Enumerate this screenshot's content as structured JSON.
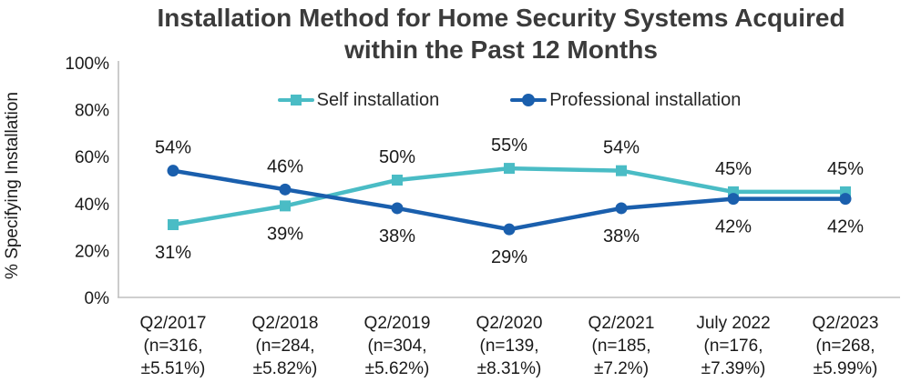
{
  "title": {
    "line1": "Installation Method for Home Security Systems Acquired",
    "line2": "within the Past 12 Months"
  },
  "y_axis": {
    "label": "% Specifying Installation",
    "tick_labels": [
      "100%",
      "80%",
      "60%",
      "40%",
      "20%",
      "0%"
    ],
    "tick_values": [
      100,
      80,
      60,
      40,
      20,
      0
    ]
  },
  "legend": [
    {
      "label": "Self installation",
      "color": "#4ABCC5",
      "marker": "square"
    },
    {
      "label": "Professional installation",
      "color": "#1A5FAD",
      "marker": "circle"
    }
  ],
  "chart_data": {
    "type": "line",
    "title": "Installation Method for Home Security Systems Acquired within the Past 12 Months",
    "ylabel": "% Specifying Installation",
    "ylim": [
      0,
      100
    ],
    "ytick_values": [
      100,
      80,
      60,
      40,
      20,
      0
    ],
    "ytick_labels": [
      "100%",
      "80%",
      "60%",
      "40%",
      "20%",
      "0%"
    ],
    "grid": false,
    "legend_position": "top-center-inside",
    "axis_color": "#BFBFBF",
    "categories": [
      "Q2/2017",
      "Q2/2018",
      "Q2/2019",
      "Q2/2020",
      "Q2/2021",
      "July 2022",
      "Q2/2023"
    ],
    "category_notes": [
      [
        "(n=316,",
        "±5.51%)"
      ],
      [
        "(n=284,",
        "±5.82%)"
      ],
      [
        "(n=304,",
        "±5.62%)"
      ],
      [
        "(n=139,",
        "±8.31%)"
      ],
      [
        "(n=185,",
        "±7.2%)"
      ],
      [
        "(n=176,",
        "±7.39%)"
      ],
      [
        "(n=268,",
        "±5.99%)"
      ]
    ],
    "series": [
      {
        "name": "Self installation",
        "color": "#4ABCC5",
        "marker": "square",
        "values": [
          31,
          39,
          50,
          55,
          54,
          45,
          45
        ],
        "data_labels": [
          "31%",
          "39%",
          "50%",
          "55%",
          "54%",
          "45%",
          "45%"
        ],
        "label_positions": [
          "below",
          "below",
          "above",
          "above",
          "above",
          "above",
          "above"
        ]
      },
      {
        "name": "Professional installation",
        "color": "#1A5FAD",
        "marker": "circle",
        "values": [
          54,
          46,
          38,
          29,
          38,
          42,
          42
        ],
        "data_labels": [
          "54%",
          "46%",
          "38%",
          "29%",
          "38%",
          "42%",
          "42%"
        ],
        "label_positions": [
          "above",
          "above",
          "below",
          "below",
          "below",
          "below",
          "below"
        ]
      }
    ]
  }
}
